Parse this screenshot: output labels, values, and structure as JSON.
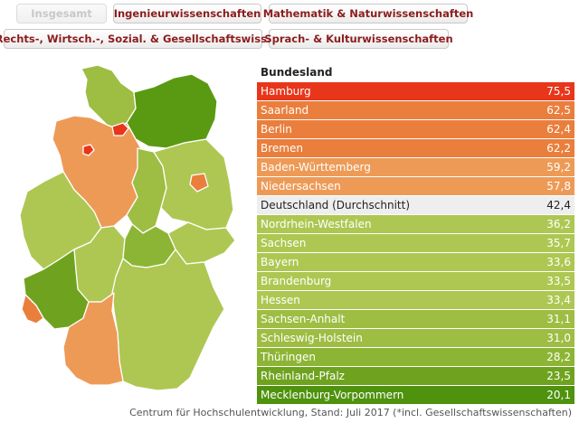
{
  "tabs": [
    {
      "label": "Insgesamt",
      "active": true
    },
    {
      "label": "Ingenieurwissenschaften",
      "active": false
    },
    {
      "label": "Mathematik & Naturwissenschaften",
      "active": false
    },
    {
      "label": "Rechts-, Wirtsch.-, Sozial. & Gesellschaftswiss.",
      "active": false
    },
    {
      "label": "Sprach- & Kulturwissenschaften",
      "active": false
    }
  ],
  "table": {
    "title": "Bundesland",
    "rows": [
      {
        "name": "Hamburg",
        "value": "75,5",
        "color": "#e8361a",
        "text": "#ffffff"
      },
      {
        "name": "Saarland",
        "value": "62,5",
        "color": "#ea7e3c",
        "text": "#ffffff"
      },
      {
        "name": "Berlin",
        "value": "62,4",
        "color": "#ea7e3c",
        "text": "#ffffff"
      },
      {
        "name": "Bremen",
        "value": "62,2",
        "color": "#ea7e3c",
        "text": "#ffffff"
      },
      {
        "name": "Baden-Württemberg",
        "value": "59,2",
        "color": "#ee9a57",
        "text": "#ffffff"
      },
      {
        "name": "Niedersachsen",
        "value": "57,8",
        "color": "#ee9a57",
        "text": "#ffffff"
      },
      {
        "name": "Deutschland (Durchschnitt)",
        "value": "42,4",
        "color": "#eeeeee",
        "text": "#222222"
      },
      {
        "name": "Nordrhein-Westfalen",
        "value": "36,2",
        "color": "#aec752",
        "text": "#ffffff"
      },
      {
        "name": "Sachsen",
        "value": "35,7",
        "color": "#aec752",
        "text": "#ffffff"
      },
      {
        "name": "Bayern",
        "value": "33,6",
        "color": "#aec752",
        "text": "#ffffff"
      },
      {
        "name": "Brandenburg",
        "value": "33,5",
        "color": "#aec752",
        "text": "#ffffff"
      },
      {
        "name": "Hessen",
        "value": "33,4",
        "color": "#aec752",
        "text": "#ffffff"
      },
      {
        "name": "Sachsen-Anhalt",
        "value": "31,1",
        "color": "#9ebd43",
        "text": "#ffffff"
      },
      {
        "name": "Schleswig-Holstein",
        "value": "31,0",
        "color": "#9ebd43",
        "text": "#ffffff"
      },
      {
        "name": "Thüringen",
        "value": "28,2",
        "color": "#8db535",
        "text": "#ffffff"
      },
      {
        "name": "Rheinland-Pfalz",
        "value": "23,5",
        "color": "#6fa31f",
        "text": "#ffffff"
      },
      {
        "name": "Mecklenburg-Vorpommern",
        "value": "20,1",
        "color": "#4e920d",
        "text": "#ffffff"
      }
    ]
  },
  "source": "Centrum für Hochschulentwicklung, Stand: Juli 2017 (*incl. Gesellschaftswissenschaften)"
}
